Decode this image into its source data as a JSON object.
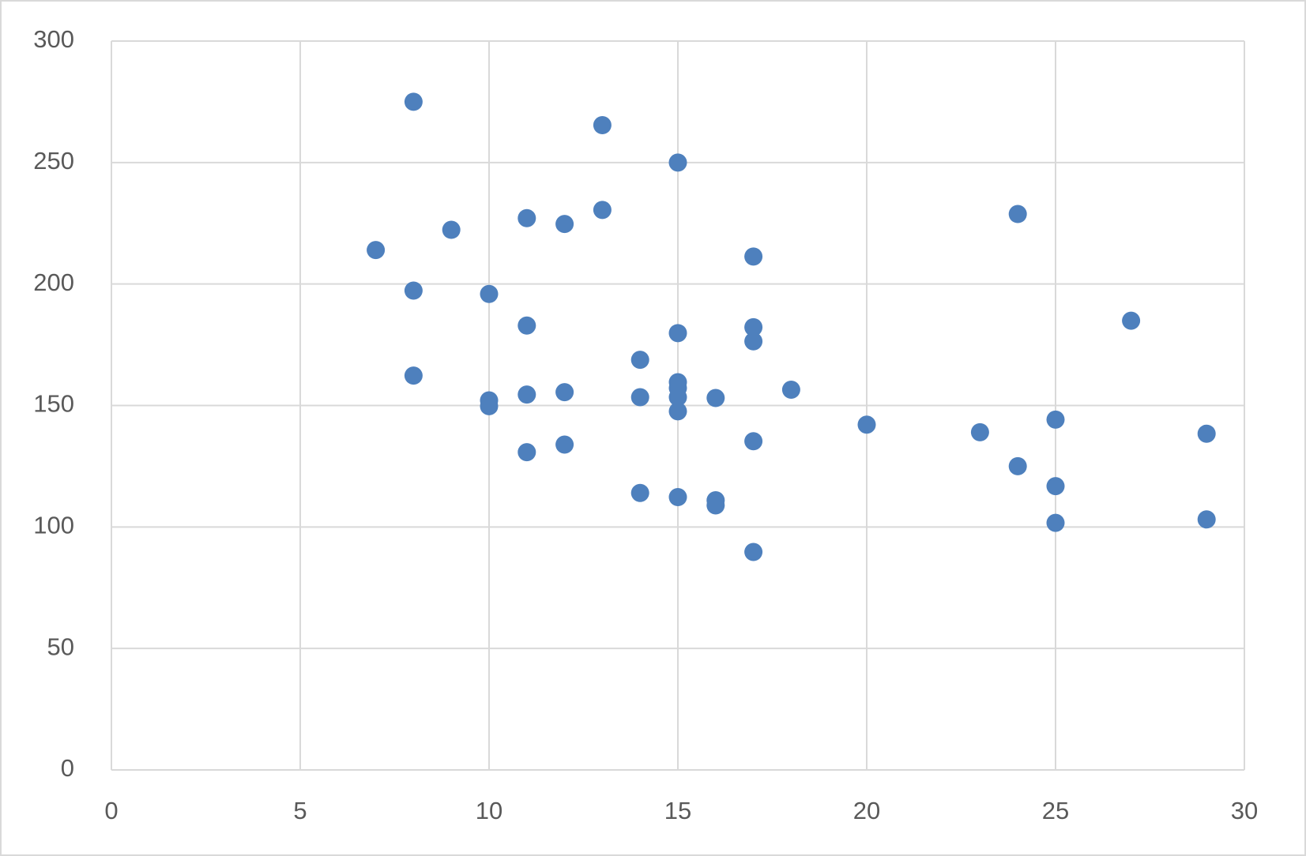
{
  "chart_data": {
    "type": "scatter",
    "x": [
      8,
      13,
      15,
      9,
      11,
      12,
      13,
      7,
      8,
      10,
      17,
      24,
      11,
      17,
      17,
      15,
      27,
      14,
      8,
      15,
      15,
      18,
      12,
      11,
      14,
      15,
      16,
      10,
      10,
      15,
      25,
      20,
      23,
      29,
      17,
      12,
      11,
      24,
      25,
      14,
      15,
      16,
      16,
      25,
      29,
      17
    ],
    "y": [
      275,
      265.4,
      250,
      222.3,
      227.1,
      224.7,
      230.5,
      214,
      197.3,
      195.9,
      211.3,
      228.8,
      182.9,
      182.2,
      176.4,
      179.8,
      184.9,
      168.8,
      162.3,
      159.6,
      157.2,
      156.5,
      155.5,
      154.5,
      153.4,
      153.4,
      153.1,
      152.1,
      149.7,
      147.6,
      144.2,
      142.1,
      139,
      138.4,
      135.3,
      133.9,
      130.8,
      125,
      116.8,
      114,
      112.3,
      111,
      108.9,
      101.7,
      103.1,
      89.7
    ],
    "color": "#4e80bd",
    "xlim": [
      0,
      30
    ],
    "xticks": [
      0,
      5,
      10,
      15,
      20,
      25,
      30
    ],
    "ylim": [
      0,
      300
    ],
    "yticks": [
      0,
      50,
      100,
      150,
      200,
      250,
      300
    ],
    "grid": true
  }
}
